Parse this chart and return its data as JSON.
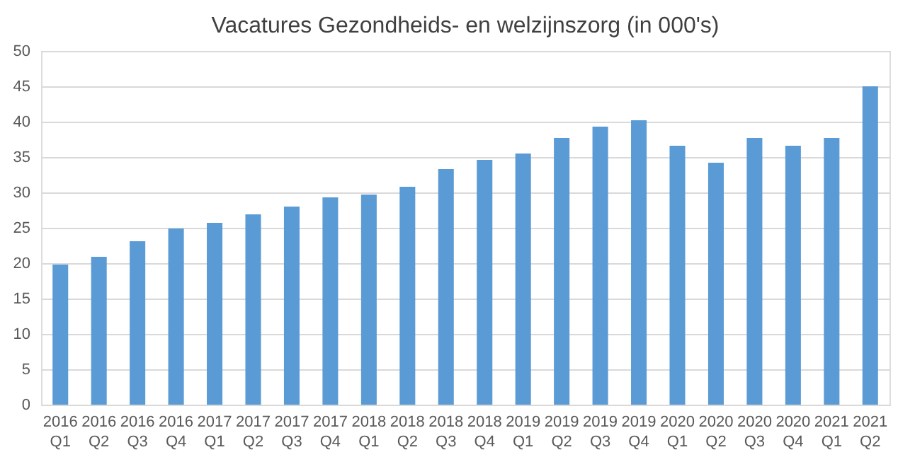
{
  "chart_data": {
    "type": "bar",
    "title": "Vacatures Gezondheids- en welzijnszorg (in 000's)",
    "categories": [
      "2016 Q1",
      "2016 Q2",
      "2016 Q3",
      "2016 Q4",
      "2017 Q1",
      "2017 Q2",
      "2017 Q3",
      "2017 Q4",
      "2018 Q1",
      "2018 Q2",
      "2018 Q3",
      "2018 Q4",
      "2019 Q1",
      "2019 Q2",
      "2019 Q3",
      "2019 Q4",
      "2020 Q1",
      "2020 Q2",
      "2020 Q3",
      "2020 Q4",
      "2021 Q1",
      "2021 Q2"
    ],
    "values": [
      19.8,
      20.9,
      23.1,
      24.9,
      25.7,
      26.9,
      28.0,
      29.3,
      29.7,
      30.8,
      33.3,
      34.6,
      35.5,
      37.7,
      39.3,
      40.2,
      36.6,
      34.2,
      37.7,
      36.6,
      37.7,
      45.0
    ],
    "color": "#5b9bd5",
    "ylim": [
      0,
      50
    ],
    "yticks": [
      0,
      5,
      10,
      15,
      20,
      25,
      30,
      35,
      40,
      45,
      50
    ],
    "grid": "y"
  }
}
